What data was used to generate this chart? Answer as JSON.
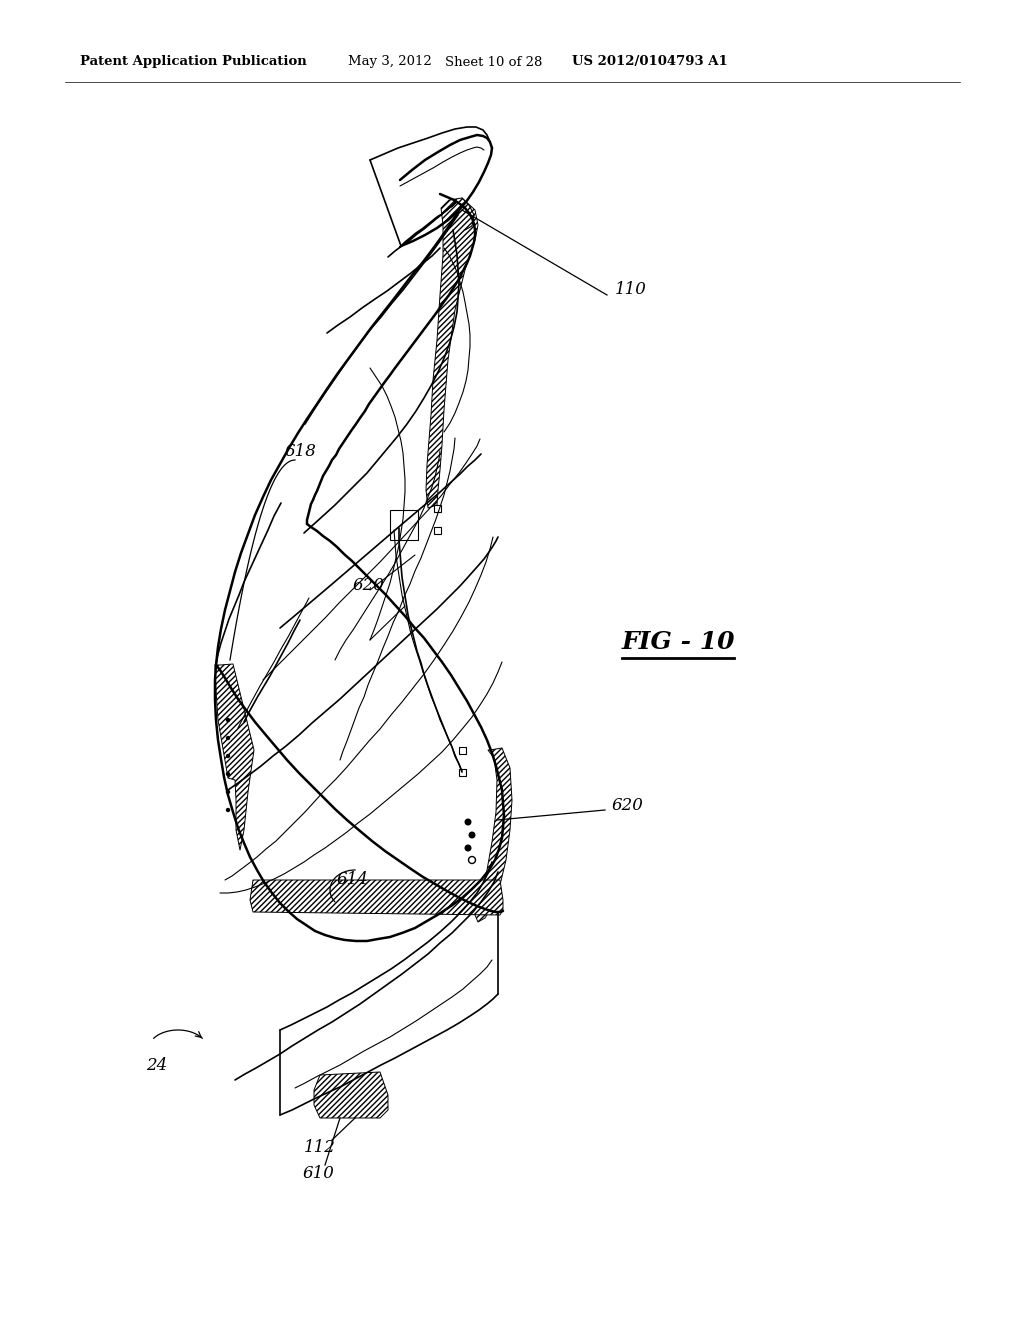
{
  "background_color": "#ffffff",
  "header_text": "Patent Application Publication",
  "header_date": "May 3, 2012",
  "header_sheet": "Sheet 10 of 28",
  "header_patent": "US 2012/0104793 A1",
  "fig_label": "FIG - 10",
  "label_110": "110",
  "label_618": "618",
  "label_620": "620",
  "label_614": "614",
  "label_24": "24",
  "label_112": "112",
  "label_610": "610",
  "line_color": "#000000",
  "lw_main": 1.8,
  "lw_med": 1.2,
  "lw_thin": 0.8,
  "header_fontsize": 9.5,
  "label_fontsize": 12,
  "fig_fontsize": 18
}
